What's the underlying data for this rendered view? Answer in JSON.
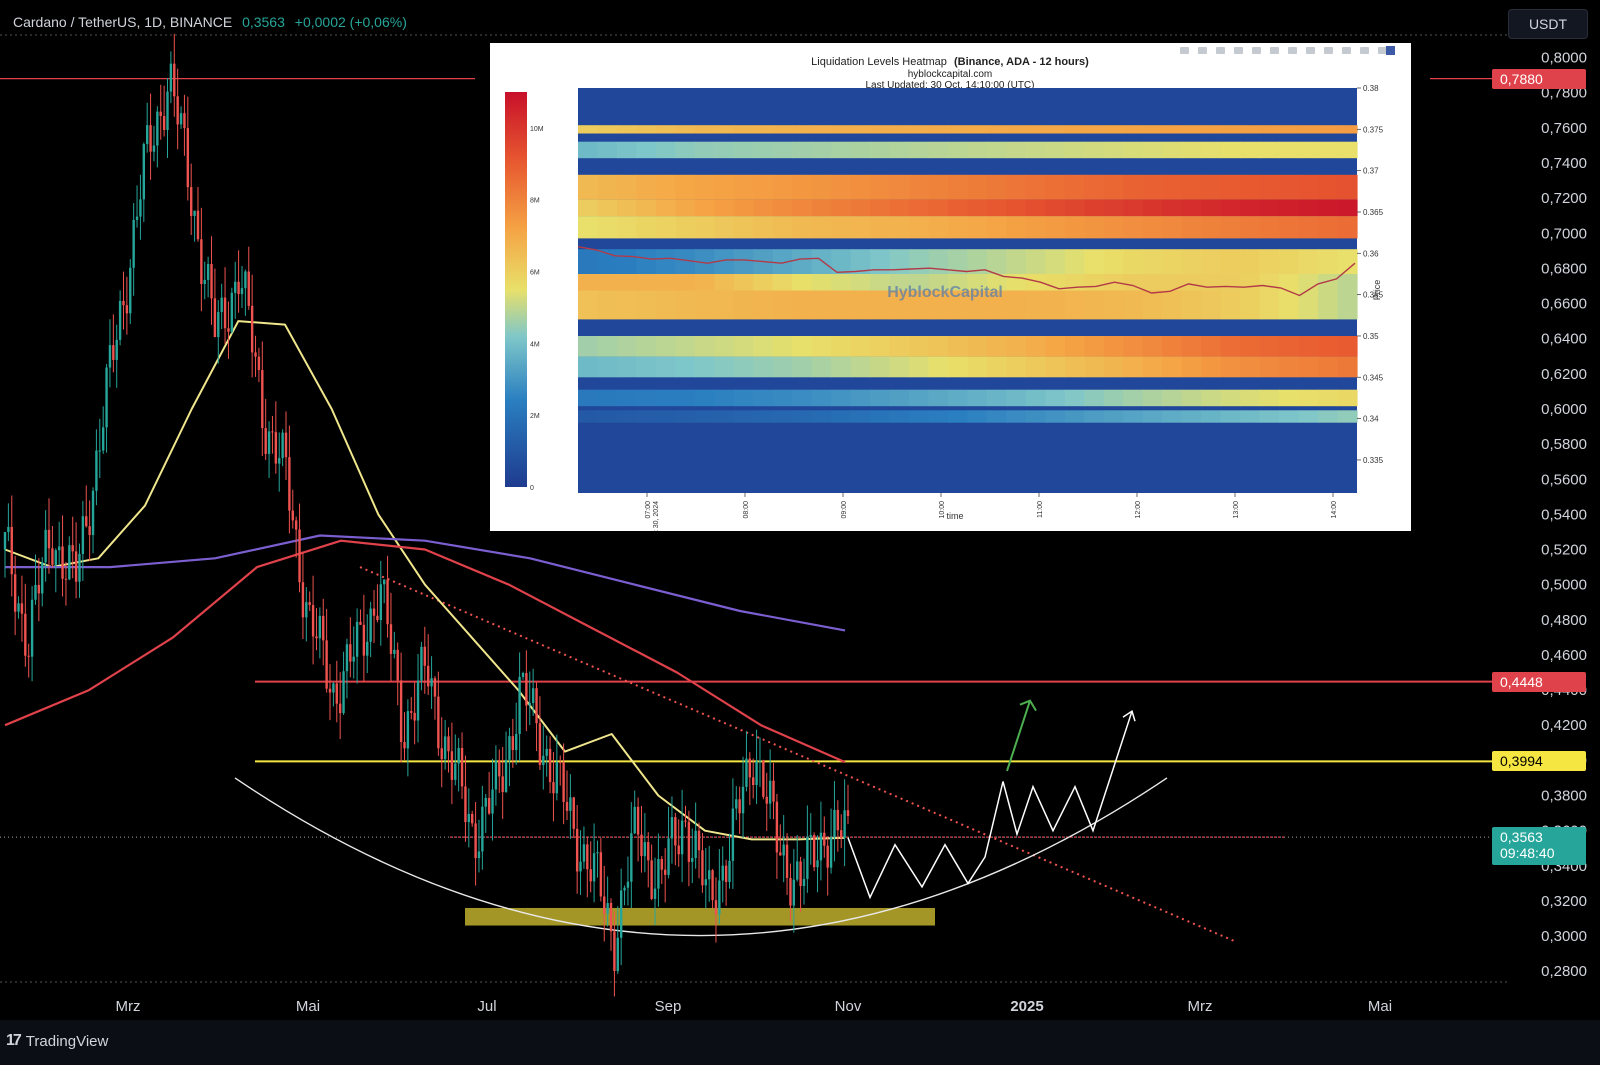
{
  "header": {
    "symbol": "Cardano / TetherUS, 1D, BINANCE",
    "last_price": "0,3563",
    "change": "+0,0002 (+0,06%)",
    "currency": "USDT"
  },
  "brand": {
    "name": "TradingView",
    "icon": "tradingview-logo-icon"
  },
  "colors": {
    "background": "#000000",
    "up": "#26a69a",
    "down": "#ef5350",
    "ma_yellow": "#f0e68c",
    "ma_red": "#e0424b",
    "ma_purple": "#7b5fd1",
    "resistance": "#e0424b",
    "support": "#f5e642",
    "support_zone": "#b5a52a",
    "current_price": "#26a69a",
    "projection": "#ffffff",
    "green_arrow": "#4caf50"
  },
  "chart_data": [
    {
      "type": "line",
      "name": "ADA/USDT daily",
      "y_axis": {
        "labels": [
          "0,8000",
          "0,7800",
          "0,7600",
          "0,7400",
          "0,7200",
          "0,7000",
          "0,6800",
          "0,6600",
          "0,6400",
          "0,6200",
          "0,6000",
          "0,5800",
          "0,5600",
          "0,5400",
          "0,5200",
          "0,5000",
          "0,4800",
          "0,4600",
          "0,4400",
          "0,4200",
          "0,4000",
          "0,3800",
          "0,3600",
          "0,3400",
          "0,3200",
          "0,3000",
          "0,2800"
        ],
        "range": [
          0.275,
          0.81
        ]
      },
      "x_axis": {
        "labels": [
          "Mrz",
          "Mai",
          "Jul",
          "Sep",
          "Nov",
          "2025",
          "Mrz",
          "Mai"
        ],
        "bold_label": "2025"
      },
      "price_tags": [
        {
          "value": "0,7880",
          "kind": "resistance"
        },
        {
          "value": "0,4448",
          "kind": "resistance"
        },
        {
          "value": "0,3994",
          "kind": "support"
        },
        {
          "value": "0,3563",
          "kind": "current",
          "countdown": "09:48:40"
        }
      ],
      "horizontal_levels": [
        0.788,
        0.4448,
        0.3994,
        0.3563
      ],
      "ma_fast_yellow": [
        0.52,
        0.51,
        0.515,
        0.545,
        0.6,
        0.65,
        0.648,
        0.6,
        0.54,
        0.5,
        0.47,
        0.44,
        0.405,
        0.415,
        0.38,
        0.36,
        0.355,
        0.355,
        0.356
      ],
      "ma_slow_red": [
        0.42,
        0.44,
        0.47,
        0.51,
        0.525,
        0.52,
        0.5,
        0.475,
        0.45,
        0.42,
        0.399
      ],
      "ma_long_purple": [
        0.51,
        0.51,
        0.515,
        0.528,
        0.525,
        0.515,
        0.5,
        0.485,
        0.474
      ],
      "price_path": [
        0.52,
        0.47,
        0.53,
        0.5,
        0.58,
        0.66,
        0.74,
        0.79,
        0.72,
        0.64,
        0.68,
        0.6,
        0.56,
        0.48,
        0.44,
        0.46,
        0.5,
        0.42,
        0.45,
        0.4,
        0.36,
        0.38,
        0.44,
        0.41,
        0.37,
        0.34,
        0.3,
        0.36,
        0.33,
        0.37,
        0.32,
        0.35,
        0.41,
        0.35,
        0.33,
        0.36,
        0.355
      ],
      "projection_path": [
        0.356,
        0.322,
        0.352,
        0.328,
        0.352,
        0.33,
        0.345,
        0.388,
        0.358,
        0.385,
        0.36,
        0.385,
        0.36,
        0.428
      ],
      "rounded_bottom": {
        "start": 0.39,
        "low": 0.298,
        "end": 0.39
      },
      "support_zone": [
        0.306,
        0.316
      ],
      "downtrend_from": 0.51,
      "downtrend_to": 0.297
    },
    {
      "type": "heatmap",
      "title": "Liquidation Levels Heatmap",
      "title_bold": "(Binance, ADA - 12 hours)",
      "subtitle": "hyblockcapital.com",
      "updated": "Last Updated: 30 Oct, 14:10:00 (UTC)",
      "watermark": "HyblockCapital",
      "xlabel": "time",
      "ylabel": "Price",
      "x_ticks": [
        "07:00",
        "08:00",
        "09:00",
        "10:00",
        "11:00",
        "12:00",
        "13:00",
        "14:00"
      ],
      "x_first_sub": "Oct 30, 2024",
      "y_ticks": [
        "0.38",
        "0.375",
        "0.37",
        "0.365",
        "0.36",
        "0.355",
        "0.35",
        "0.345",
        "0.34",
        "0.335"
      ],
      "y_range": [
        0.331,
        0.38
      ],
      "colorbar_ticks": [
        "10M",
        "8M",
        "6M",
        "4M",
        "2M",
        "0"
      ],
      "colorbar_range": [
        0,
        11000000
      ],
      "price_line": [
        0.3608,
        0.3604,
        0.3597,
        0.3596,
        0.3593,
        0.3594,
        0.3591,
        0.3588,
        0.3592,
        0.3592,
        0.359,
        0.3588,
        0.3593,
        0.3594,
        0.3577,
        0.3578,
        0.358,
        0.358,
        0.3581,
        0.3582,
        0.358,
        0.3578,
        0.358,
        0.3572,
        0.357,
        0.3565,
        0.3557,
        0.3559,
        0.356,
        0.3565,
        0.3561,
        0.3552,
        0.3554,
        0.3563,
        0.3559,
        0.356,
        0.3559,
        0.3561,
        0.3558,
        0.3549,
        0.3563,
        0.3569,
        0.3588
      ],
      "bands": [
        {
          "low": 0.3745,
          "high": 0.3755,
          "intensity": [
            0.55,
            0.6,
            0.62,
            0.63,
            0.64,
            0.65,
            0.66,
            0.67
          ]
        },
        {
          "low": 0.3715,
          "high": 0.3735,
          "intensity": [
            0.35,
            0.4,
            0.42,
            0.44,
            0.46,
            0.48,
            0.5,
            0.5
          ]
        },
        {
          "low": 0.3665,
          "high": 0.3695,
          "intensity": [
            0.6,
            0.65,
            0.68,
            0.72,
            0.76,
            0.8,
            0.82,
            0.84
          ]
        },
        {
          "low": 0.3645,
          "high": 0.3665,
          "intensity": [
            0.55,
            0.65,
            0.72,
            0.78,
            0.84,
            0.9,
            0.95,
            0.98
          ]
        },
        {
          "low": 0.3618,
          "high": 0.3645,
          "intensity": [
            0.5,
            0.55,
            0.6,
            0.62,
            0.66,
            0.7,
            0.74,
            0.78
          ]
        },
        {
          "low": 0.3575,
          "high": 0.3605,
          "intensity": [
            0.2,
            0.25,
            0.32,
            0.4,
            0.46,
            0.52,
            0.55,
            0.5
          ]
        },
        {
          "low": 0.3555,
          "high": 0.3575,
          "intensity": [
            0.62,
            0.62,
            0.5,
            0.45,
            0.5,
            0.55,
            0.55,
            0.45
          ]
        },
        {
          "low": 0.352,
          "high": 0.3555,
          "intensity": [
            0.58,
            0.6,
            0.62,
            0.62,
            0.62,
            0.6,
            0.55,
            0.45
          ]
        },
        {
          "low": 0.3475,
          "high": 0.35,
          "intensity": [
            0.42,
            0.46,
            0.5,
            0.56,
            0.62,
            0.7,
            0.78,
            0.82
          ]
        },
        {
          "low": 0.345,
          "high": 0.3475,
          "intensity": [
            0.35,
            0.38,
            0.42,
            0.48,
            0.55,
            0.62,
            0.7,
            0.75
          ]
        },
        {
          "low": 0.3415,
          "high": 0.3435,
          "intensity": [
            0.2,
            0.22,
            0.25,
            0.3,
            0.35,
            0.42,
            0.48,
            0.52
          ]
        },
        {
          "low": 0.3395,
          "high": 0.341,
          "intensity": [
            0.1,
            0.12,
            0.15,
            0.2,
            0.25,
            0.3,
            0.35,
            0.4
          ]
        }
      ]
    }
  ]
}
